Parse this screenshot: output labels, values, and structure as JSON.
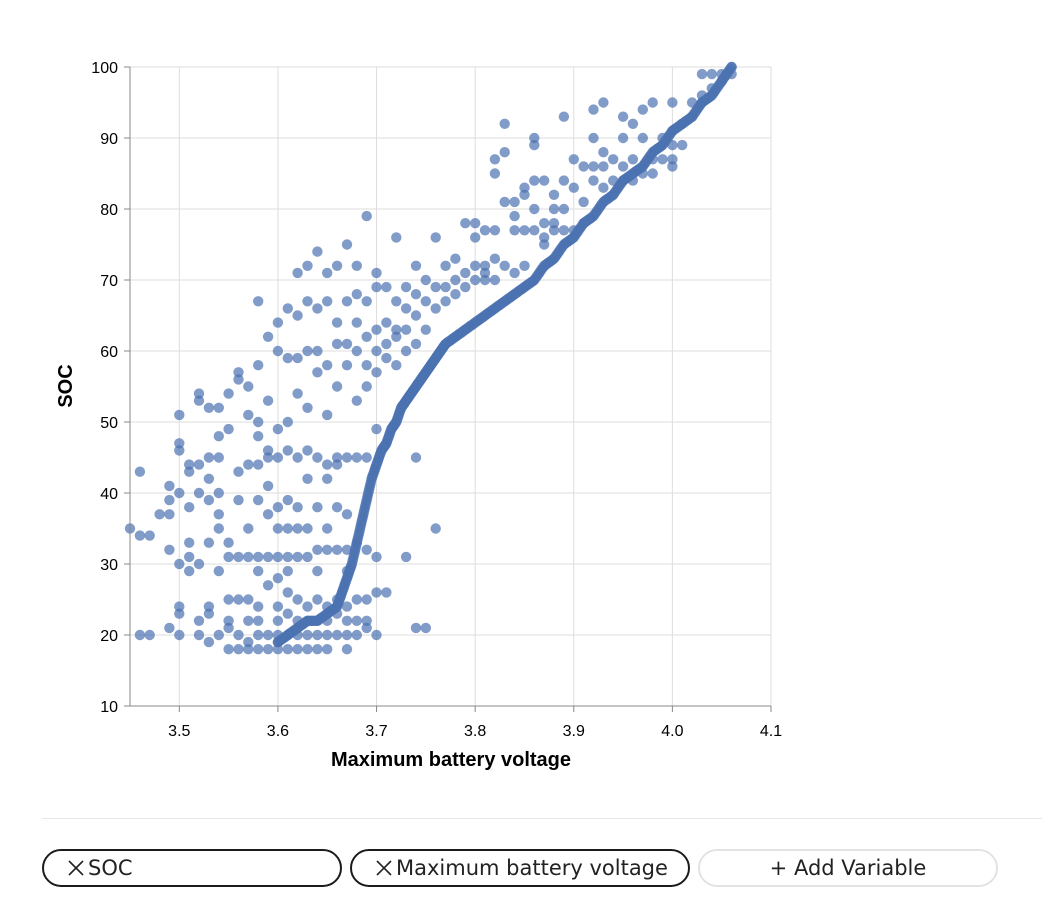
{
  "chart_data": {
    "type": "scatter",
    "xlabel": "Maximum battery voltage",
    "ylabel": "SOC",
    "xlim": [
      3.45,
      4.1
    ],
    "ylim": [
      10,
      100
    ],
    "x_ticks": [
      "3.5",
      "3.6",
      "3.7",
      "3.8",
      "3.9",
      "4.0",
      "4.1"
    ],
    "y_ticks": [
      "10",
      "20",
      "30",
      "40",
      "50",
      "60",
      "70",
      "80",
      "90",
      "100"
    ],
    "grid": true,
    "point_color": "#4c72b0",
    "point_opacity": 0.7,
    "points": [
      [
        3.45,
        35
      ],
      [
        3.46,
        20
      ],
      [
        3.46,
        43
      ],
      [
        3.46,
        34
      ],
      [
        3.47,
        34
      ],
      [
        3.47,
        20
      ],
      [
        3.48,
        37
      ],
      [
        3.49,
        37
      ],
      [
        3.49,
        41
      ],
      [
        3.49,
        39
      ],
      [
        3.49,
        32
      ],
      [
        3.49,
        21
      ],
      [
        3.5,
        20
      ],
      [
        3.5,
        24
      ],
      [
        3.5,
        40
      ],
      [
        3.5,
        46
      ],
      [
        3.5,
        47
      ],
      [
        3.5,
        51
      ],
      [
        3.5,
        23
      ],
      [
        3.5,
        30
      ],
      [
        3.51,
        29
      ],
      [
        3.51,
        33
      ],
      [
        3.51,
        44
      ],
      [
        3.51,
        43
      ],
      [
        3.51,
        38
      ],
      [
        3.51,
        31
      ],
      [
        3.52,
        30
      ],
      [
        3.52,
        44
      ],
      [
        3.52,
        54
      ],
      [
        3.52,
        53
      ],
      [
        3.52,
        40
      ],
      [
        3.52,
        20
      ],
      [
        3.52,
        22
      ],
      [
        3.53,
        19
      ],
      [
        3.53,
        24
      ],
      [
        3.53,
        39
      ],
      [
        3.53,
        42
      ],
      [
        3.53,
        52
      ],
      [
        3.53,
        45
      ],
      [
        3.53,
        33
      ],
      [
        3.53,
        23
      ],
      [
        3.54,
        40
      ],
      [
        3.54,
        20
      ],
      [
        3.54,
        45
      ],
      [
        3.54,
        48
      ],
      [
        3.54,
        52
      ],
      [
        3.54,
        29
      ],
      [
        3.54,
        37
      ],
      [
        3.54,
        35
      ],
      [
        3.55,
        18
      ],
      [
        3.55,
        22
      ],
      [
        3.55,
        25
      ],
      [
        3.55,
        31
      ],
      [
        3.55,
        49
      ],
      [
        3.55,
        54
      ],
      [
        3.55,
        33
      ],
      [
        3.55,
        21
      ],
      [
        3.56,
        25
      ],
      [
        3.56,
        18
      ],
      [
        3.56,
        31
      ],
      [
        3.56,
        43
      ],
      [
        3.56,
        56
      ],
      [
        3.56,
        57
      ],
      [
        3.56,
        39
      ],
      [
        3.56,
        20
      ],
      [
        3.57,
        18
      ],
      [
        3.57,
        19
      ],
      [
        3.57,
        22
      ],
      [
        3.57,
        31
      ],
      [
        3.57,
        44
      ],
      [
        3.57,
        51
      ],
      [
        3.57,
        55
      ],
      [
        3.57,
        25
      ],
      [
        3.57,
        35
      ],
      [
        3.58,
        18
      ],
      [
        3.58,
        20
      ],
      [
        3.58,
        24
      ],
      [
        3.58,
        31
      ],
      [
        3.58,
        39
      ],
      [
        3.58,
        44
      ],
      [
        3.58,
        50
      ],
      [
        3.58,
        58
      ],
      [
        3.58,
        67
      ],
      [
        3.58,
        48
      ],
      [
        3.58,
        29
      ],
      [
        3.58,
        22
      ],
      [
        3.59,
        20
      ],
      [
        3.59,
        18
      ],
      [
        3.59,
        27
      ],
      [
        3.59,
        31
      ],
      [
        3.59,
        37
      ],
      [
        3.59,
        41
      ],
      [
        3.59,
        46
      ],
      [
        3.59,
        53
      ],
      [
        3.59,
        62
      ],
      [
        3.59,
        45
      ],
      [
        3.6,
        18
      ],
      [
        3.6,
        20
      ],
      [
        3.6,
        22
      ],
      [
        3.6,
        24
      ],
      [
        3.6,
        28
      ],
      [
        3.6,
        31
      ],
      [
        3.6,
        35
      ],
      [
        3.6,
        38
      ],
      [
        3.6,
        45
      ],
      [
        3.6,
        49
      ],
      [
        3.6,
        60
      ],
      [
        3.6,
        64
      ],
      [
        3.6,
        19
      ],
      [
        3.61,
        18
      ],
      [
        3.61,
        20
      ],
      [
        3.61,
        23
      ],
      [
        3.61,
        26
      ],
      [
        3.61,
        31
      ],
      [
        3.61,
        35
      ],
      [
        3.61,
        39
      ],
      [
        3.61,
        46
      ],
      [
        3.61,
        50
      ],
      [
        3.61,
        59
      ],
      [
        3.61,
        66
      ],
      [
        3.61,
        29
      ],
      [
        3.62,
        18
      ],
      [
        3.62,
        20
      ],
      [
        3.62,
        22
      ],
      [
        3.62,
        25
      ],
      [
        3.62,
        31
      ],
      [
        3.62,
        35
      ],
      [
        3.62,
        45
      ],
      [
        3.62,
        54
      ],
      [
        3.62,
        59
      ],
      [
        3.62,
        65
      ],
      [
        3.62,
        71
      ],
      [
        3.62,
        38
      ],
      [
        3.63,
        18
      ],
      [
        3.63,
        20
      ],
      [
        3.63,
        22
      ],
      [
        3.63,
        24
      ],
      [
        3.63,
        31
      ],
      [
        3.63,
        35
      ],
      [
        3.63,
        46
      ],
      [
        3.63,
        52
      ],
      [
        3.63,
        60
      ],
      [
        3.63,
        67
      ],
      [
        3.63,
        72
      ],
      [
        3.63,
        42
      ],
      [
        3.64,
        18
      ],
      [
        3.64,
        20
      ],
      [
        3.64,
        22
      ],
      [
        3.64,
        25
      ],
      [
        3.64,
        32
      ],
      [
        3.64,
        38
      ],
      [
        3.64,
        45
      ],
      [
        3.64,
        57
      ],
      [
        3.64,
        60
      ],
      [
        3.64,
        66
      ],
      [
        3.64,
        74
      ],
      [
        3.64,
        29
      ],
      [
        3.65,
        18
      ],
      [
        3.65,
        20
      ],
      [
        3.65,
        22
      ],
      [
        3.65,
        24
      ],
      [
        3.65,
        32
      ],
      [
        3.65,
        35
      ],
      [
        3.65,
        42
      ],
      [
        3.65,
        51
      ],
      [
        3.65,
        58
      ],
      [
        3.65,
        67
      ],
      [
        3.65,
        71
      ],
      [
        3.65,
        44
      ],
      [
        3.66,
        20
      ],
      [
        3.66,
        23
      ],
      [
        3.66,
        25
      ],
      [
        3.66,
        32
      ],
      [
        3.66,
        38
      ],
      [
        3.66,
        44
      ],
      [
        3.66,
        55
      ],
      [
        3.66,
        61
      ],
      [
        3.66,
        64
      ],
      [
        3.66,
        72
      ],
      [
        3.66,
        45
      ],
      [
        3.67,
        18
      ],
      [
        3.67,
        20
      ],
      [
        3.67,
        22
      ],
      [
        3.67,
        24
      ],
      [
        3.67,
        29
      ],
      [
        3.67,
        32
      ],
      [
        3.67,
        45
      ],
      [
        3.67,
        58
      ],
      [
        3.67,
        61
      ],
      [
        3.67,
        67
      ],
      [
        3.67,
        75
      ],
      [
        3.67,
        37
      ],
      [
        3.68,
        20
      ],
      [
        3.68,
        22
      ],
      [
        3.68,
        25
      ],
      [
        3.68,
        33
      ],
      [
        3.68,
        45
      ],
      [
        3.68,
        53
      ],
      [
        3.68,
        60
      ],
      [
        3.68,
        64
      ],
      [
        3.68,
        72
      ],
      [
        3.68,
        68
      ],
      [
        3.69,
        21
      ],
      [
        3.69,
        22
      ],
      [
        3.69,
        25
      ],
      [
        3.69,
        32
      ],
      [
        3.69,
        45
      ],
      [
        3.69,
        58
      ],
      [
        3.69,
        62
      ],
      [
        3.69,
        67
      ],
      [
        3.69,
        79
      ],
      [
        3.69,
        55
      ],
      [
        3.7,
        20
      ],
      [
        3.7,
        26
      ],
      [
        3.7,
        31
      ],
      [
        3.7,
        49
      ],
      [
        3.7,
        57
      ],
      [
        3.7,
        60
      ],
      [
        3.7,
        63
      ],
      [
        3.7,
        69
      ],
      [
        3.7,
        71
      ],
      [
        3.71,
        26
      ],
      [
        3.71,
        59
      ],
      [
        3.71,
        61
      ],
      [
        3.71,
        64
      ],
      [
        3.71,
        69
      ],
      [
        3.72,
        58
      ],
      [
        3.72,
        62
      ],
      [
        3.72,
        63
      ],
      [
        3.72,
        67
      ],
      [
        3.72,
        76
      ],
      [
        3.73,
        31
      ],
      [
        3.73,
        60
      ],
      [
        3.73,
        63
      ],
      [
        3.73,
        66
      ],
      [
        3.73,
        69
      ],
      [
        3.74,
        45
      ],
      [
        3.74,
        21
      ],
      [
        3.74,
        61
      ],
      [
        3.74,
        65
      ],
      [
        3.74,
        68
      ],
      [
        3.74,
        72
      ],
      [
        3.75,
        21
      ],
      [
        3.75,
        63
      ],
      [
        3.75,
        67
      ],
      [
        3.75,
        70
      ],
      [
        3.76,
        35
      ],
      [
        3.76,
        76
      ],
      [
        3.76,
        69
      ],
      [
        3.76,
        66
      ],
      [
        3.77,
        72
      ],
      [
        3.77,
        69
      ],
      [
        3.77,
        67
      ],
      [
        3.78,
        73
      ],
      [
        3.78,
        70
      ],
      [
        3.78,
        68
      ],
      [
        3.79,
        78
      ],
      [
        3.79,
        71
      ],
      [
        3.79,
        69
      ],
      [
        3.8,
        78
      ],
      [
        3.8,
        72
      ],
      [
        3.8,
        70
      ],
      [
        3.81,
        77
      ],
      [
        3.81,
        72
      ],
      [
        3.81,
        70
      ],
      [
        3.82,
        85
      ],
      [
        3.82,
        87
      ],
      [
        3.82,
        77
      ],
      [
        3.82,
        70
      ],
      [
        3.83,
        92
      ],
      [
        3.83,
        81
      ],
      [
        3.83,
        72
      ],
      [
        3.84,
        81
      ],
      [
        3.84,
        77
      ],
      [
        3.84,
        71
      ],
      [
        3.85,
        77
      ],
      [
        3.85,
        83
      ],
      [
        3.85,
        72
      ],
      [
        3.86,
        90
      ],
      [
        3.86,
        89
      ],
      [
        3.86,
        84
      ],
      [
        3.86,
        80
      ],
      [
        3.86,
        77
      ],
      [
        3.87,
        84
      ],
      [
        3.87,
        78
      ],
      [
        3.87,
        75
      ],
      [
        3.88,
        82
      ],
      [
        3.88,
        80
      ],
      [
        3.88,
        77
      ],
      [
        3.89,
        93
      ],
      [
        3.89,
        84
      ],
      [
        3.89,
        80
      ],
      [
        3.89,
        77
      ],
      [
        3.9,
        87
      ],
      [
        3.9,
        83
      ],
      [
        3.9,
        77
      ],
      [
        3.91,
        86
      ],
      [
        3.91,
        81
      ],
      [
        3.92,
        94
      ],
      [
        3.92,
        86
      ],
      [
        3.92,
        84
      ],
      [
        3.93,
        83
      ],
      [
        3.93,
        86
      ],
      [
        3.93,
        88
      ],
      [
        3.94,
        87
      ],
      [
        3.94,
        84
      ],
      [
        3.94,
        82
      ],
      [
        3.95,
        90
      ],
      [
        3.95,
        86
      ],
      [
        3.95,
        84
      ],
      [
        3.96,
        87
      ],
      [
        3.96,
        84
      ],
      [
        3.97,
        90
      ],
      [
        3.97,
        85
      ],
      [
        3.98,
        85
      ],
      [
        3.98,
        87
      ],
      [
        3.99,
        90
      ],
      [
        3.99,
        87
      ],
      [
        4.0,
        95
      ],
      [
        4.0,
        91
      ],
      [
        4.0,
        89
      ],
      [
        4.0,
        86
      ],
      [
        4.01,
        92
      ],
      [
        4.01,
        89
      ],
      [
        4.02,
        93
      ],
      [
        4.02,
        95
      ],
      [
        4.03,
        95
      ],
      [
        4.03,
        99
      ],
      [
        4.03,
        96
      ],
      [
        4.04,
        99
      ],
      [
        4.04,
        97
      ],
      [
        4.05,
        99
      ],
      [
        4.05,
        98
      ],
      [
        4.06,
        99
      ],
      [
        4.06,
        100
      ],
      [
        3.93,
        95
      ],
      [
        3.92,
        90
      ],
      [
        3.95,
        93
      ],
      [
        3.96,
        92
      ],
      [
        3.97,
        94
      ],
      [
        3.98,
        95
      ],
      [
        4.0,
        87
      ],
      [
        3.91,
        78
      ],
      [
        3.88,
        78
      ],
      [
        3.87,
        76
      ],
      [
        3.84,
        79
      ],
      [
        3.85,
        82
      ],
      [
        3.83,
        88
      ],
      [
        3.8,
        76
      ],
      [
        3.82,
        73
      ],
      [
        3.81,
        71
      ]
    ],
    "curve_points": [
      [
        3.6,
        19
      ],
      [
        3.61,
        20
      ],
      [
        3.62,
        21
      ],
      [
        3.63,
        22
      ],
      [
        3.64,
        22
      ],
      [
        3.65,
        23
      ],
      [
        3.66,
        24
      ],
      [
        3.665,
        26
      ],
      [
        3.67,
        28
      ],
      [
        3.675,
        30
      ],
      [
        3.68,
        33
      ],
      [
        3.685,
        36
      ],
      [
        3.69,
        39
      ],
      [
        3.695,
        42
      ],
      [
        3.7,
        44
      ],
      [
        3.705,
        46
      ],
      [
        3.71,
        47
      ],
      [
        3.715,
        49
      ],
      [
        3.72,
        50
      ],
      [
        3.725,
        52
      ],
      [
        3.73,
        53
      ],
      [
        3.735,
        54
      ],
      [
        3.74,
        55
      ],
      [
        3.745,
        56
      ],
      [
        3.75,
        57
      ],
      [
        3.755,
        58
      ],
      [
        3.76,
        59
      ],
      [
        3.765,
        60
      ],
      [
        3.77,
        61
      ],
      [
        3.78,
        62
      ],
      [
        3.79,
        63
      ],
      [
        3.8,
        64
      ],
      [
        3.81,
        65
      ],
      [
        3.82,
        66
      ],
      [
        3.83,
        67
      ],
      [
        3.84,
        68
      ],
      [
        3.85,
        69
      ],
      [
        3.86,
        70
      ],
      [
        3.87,
        72
      ],
      [
        3.88,
        73
      ],
      [
        3.89,
        75
      ],
      [
        3.9,
        76
      ],
      [
        3.91,
        78
      ],
      [
        3.92,
        79
      ],
      [
        3.93,
        81
      ],
      [
        3.94,
        82
      ],
      [
        3.95,
        84
      ],
      [
        3.96,
        85
      ],
      [
        3.97,
        86
      ],
      [
        3.98,
        88
      ],
      [
        3.99,
        89
      ],
      [
        4.0,
        91
      ],
      [
        4.01,
        92
      ],
      [
        4.02,
        93
      ],
      [
        4.03,
        95
      ],
      [
        4.04,
        96
      ],
      [
        4.05,
        98
      ],
      [
        4.06,
        100
      ]
    ]
  },
  "controls": {
    "variables": [
      {
        "label": "SOC"
      },
      {
        "label": "Maximum battery voltage"
      }
    ],
    "add_label": "+ Add Variable"
  }
}
